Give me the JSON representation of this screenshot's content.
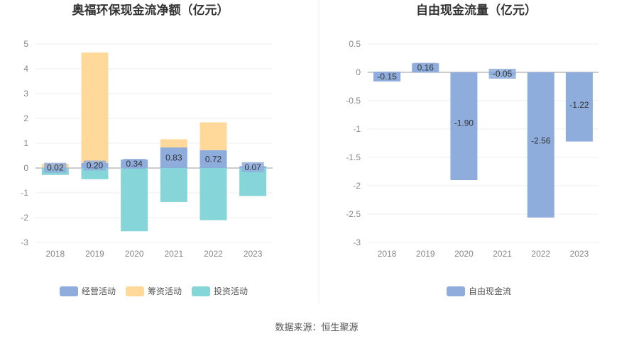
{
  "chart_data": [
    {
      "type": "bar",
      "stacked": true,
      "title": "奥福环保现金流净额（亿元）",
      "categories": [
        "2018",
        "2019",
        "2020",
        "2021",
        "2022",
        "2023"
      ],
      "ylim": [
        -3,
        5
      ],
      "yticks": [
        "5",
        "4",
        "3",
        "2",
        "1",
        "0",
        "-1",
        "-2",
        "-3"
      ],
      "ytick_values": [
        5,
        4,
        3,
        2,
        1,
        0,
        -1,
        -2,
        -3
      ],
      "grid": true,
      "legend_position": "bottom",
      "series": [
        {
          "name": "经营活动",
          "color": "#8eacdc",
          "values": [
            0.02,
            0.2,
            0.34,
            0.83,
            0.72,
            0.07
          ],
          "labels": [
            "0.02",
            "0.20",
            "0.34",
            "0.83",
            "0.72",
            "0.07"
          ]
        },
        {
          "name": "筹资活动",
          "color": "#ffd999",
          "values": [
            0.15,
            4.45,
            0.0,
            0.33,
            1.12,
            0.0
          ]
        },
        {
          "name": "投资活动",
          "color": "#86d5d8",
          "values": [
            -0.28,
            -0.45,
            -2.55,
            -1.37,
            -2.1,
            -1.13
          ]
        }
      ]
    },
    {
      "type": "bar",
      "title": "自由现金流量（亿元）",
      "categories": [
        "2018",
        "2019",
        "2020",
        "2021",
        "2022",
        "2023"
      ],
      "ylim": [
        -3,
        0.5
      ],
      "yticks": [
        "0.5",
        "0",
        "-0.5",
        "-1",
        "-1.5",
        "-2",
        "-2.5",
        "-3"
      ],
      "ytick_values": [
        0.5,
        0,
        -0.5,
        -1,
        -1.5,
        -2,
        -2.5,
        -3
      ],
      "grid": true,
      "legend_position": "bottom",
      "series": [
        {
          "name": "自由现金流",
          "color": "#8eacdc",
          "values": [
            -0.15,
            0.16,
            -1.9,
            -0.05,
            -2.56,
            -1.22
          ],
          "labels": [
            "-0.15",
            "0.16",
            "-1.90",
            "-0.05",
            "-2.56",
            "-1.22"
          ]
        }
      ]
    }
  ],
  "source": "数据来源：恒生聚源"
}
